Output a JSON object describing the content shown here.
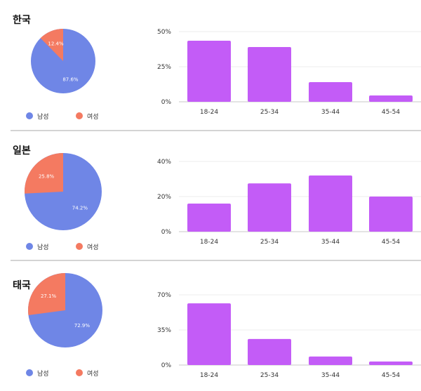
{
  "legend": {
    "male": "남성",
    "female": "여성"
  },
  "colors": {
    "male": "#6f86e6",
    "female": "#f47a61",
    "bar": "#c35cf7",
    "grid": "#ececec",
    "axis": "#c9c9c9"
  },
  "chart_data": [
    {
      "title": "한국",
      "pie": {
        "type": "pie",
        "slices": [
          {
            "name": "남성",
            "value": 87.6,
            "label": "87.6%"
          },
          {
            "name": "여성",
            "value": 12.4,
            "label": "12.4%"
          }
        ]
      },
      "bar": {
        "type": "bar",
        "categories": [
          "18-24",
          "25-34",
          "35-44",
          "45-54"
        ],
        "values": [
          43.5,
          39,
          14,
          4.5
        ],
        "yticks": [
          "0%",
          "25%",
          "50%"
        ],
        "ylim": [
          0,
          50
        ]
      }
    },
    {
      "title": "일본",
      "pie": {
        "type": "pie",
        "slices": [
          {
            "name": "남성",
            "value": 74.2,
            "label": "74.2%"
          },
          {
            "name": "여성",
            "value": 25.8,
            "label": "25.8%"
          }
        ]
      },
      "bar": {
        "type": "bar",
        "categories": [
          "18-24",
          "25-34",
          "35-44",
          "45-54"
        ],
        "values": [
          16,
          27.5,
          32,
          20
        ],
        "yticks": [
          "0%",
          "20%",
          "40%"
        ],
        "ylim": [
          0,
          40
        ]
      }
    },
    {
      "title": "태국",
      "pie": {
        "type": "pie",
        "slices": [
          {
            "name": "남성",
            "value": 72.9,
            "label": "72.9%"
          },
          {
            "name": "여성",
            "value": 27.1,
            "label": "27.1%"
          }
        ]
      },
      "bar": {
        "type": "bar",
        "categories": [
          "18-24",
          "25-34",
          "35-44",
          "45-54"
        ],
        "values": [
          61.5,
          26,
          8.5,
          3.5
        ],
        "yticks": [
          "0%",
          "35%",
          "70%"
        ],
        "ylim": [
          0,
          70
        ]
      }
    }
  ]
}
